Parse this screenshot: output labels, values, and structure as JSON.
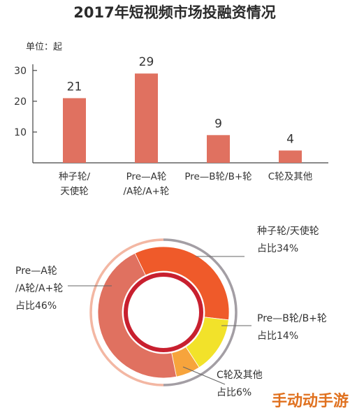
{
  "title": "2017年短视频市场投融资情况",
  "watermark": "手动动手游",
  "chart_data": [
    {
      "type": "bar",
      "unit_label": "单位：起",
      "yticks": [
        10,
        20,
        30
      ],
      "ylim": [
        0,
        32
      ],
      "color": "#e07160",
      "categories": [
        [
          "种子轮/",
          "天使轮"
        ],
        [
          "Pre—A轮",
          "/A轮/A+轮"
        ],
        [
          "Pre—B轮/B+轮"
        ],
        [
          "C轮及其他"
        ]
      ],
      "values": [
        21,
        29,
        9,
        4
      ]
    },
    {
      "type": "pie",
      "style": "donut",
      "slices": [
        {
          "label": [
            "种子轮/天使轮",
            "占比34%"
          ],
          "value": 34,
          "color": "#ef5a2a",
          "label_side": "right"
        },
        {
          "label": [
            "Pre—B轮/B+轮",
            "占比14%"
          ],
          "value": 14,
          "color": "#f2e22a",
          "label_side": "right"
        },
        {
          "label": [
            "C轮及其他",
            "占比6%"
          ],
          "value": 6,
          "color": "#f7a43c",
          "label_side": "right"
        },
        {
          "label": [
            "Pre—A轮",
            "/A轮/A+轮",
            "占比46%"
          ],
          "value": 46,
          "color": "#e07160",
          "label_side": "left"
        }
      ],
      "inner_ring_color": "#c8202f",
      "outer_ring_colors": {
        "left": "#f3b7a3",
        "right": "#a39ea4"
      }
    }
  ]
}
